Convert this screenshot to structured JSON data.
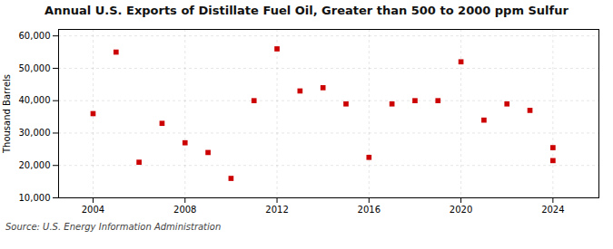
{
  "chart_data": {
    "type": "scatter",
    "title": "Annual U.S. Exports of Distillate Fuel Oil, Greater than 500 to 2000 ppm Sulfur",
    "ylabel": "Thousand Barrels",
    "source": "Source: U.S. Energy Information Administration",
    "x": [
      2004,
      2005,
      2006,
      2007,
      2008,
      2009,
      2010,
      2011,
      2012,
      2013,
      2014,
      2015,
      2016,
      2017,
      2018,
      2019,
      2020,
      2021,
      2022,
      2023,
      2024,
      2024
    ],
    "values": [
      36000,
      55000,
      21000,
      33000,
      27000,
      24000,
      16000,
      40000,
      56000,
      43000,
      44000,
      39000,
      22500,
      39000,
      40000,
      40000,
      52000,
      34000,
      39000,
      37000,
      21500,
      25500
    ],
    "color": "#cc0000",
    "marker": "square",
    "xlim": [
      2002.5,
      2026
    ],
    "xticks": [
      2004,
      2008,
      2012,
      2016,
      2020,
      2024
    ],
    "ylim": [
      10000,
      62000
    ],
    "yticks": [
      {
        "value": 10000,
        "label": "10,000"
      },
      {
        "value": 20000,
        "label": "20,000"
      },
      {
        "value": 30000,
        "label": "30,000"
      },
      {
        "value": 40000,
        "label": "40,000"
      },
      {
        "value": 50000,
        "label": "50,000"
      },
      {
        "value": 60000,
        "label": "60,000"
      }
    ],
    "grid": true
  }
}
